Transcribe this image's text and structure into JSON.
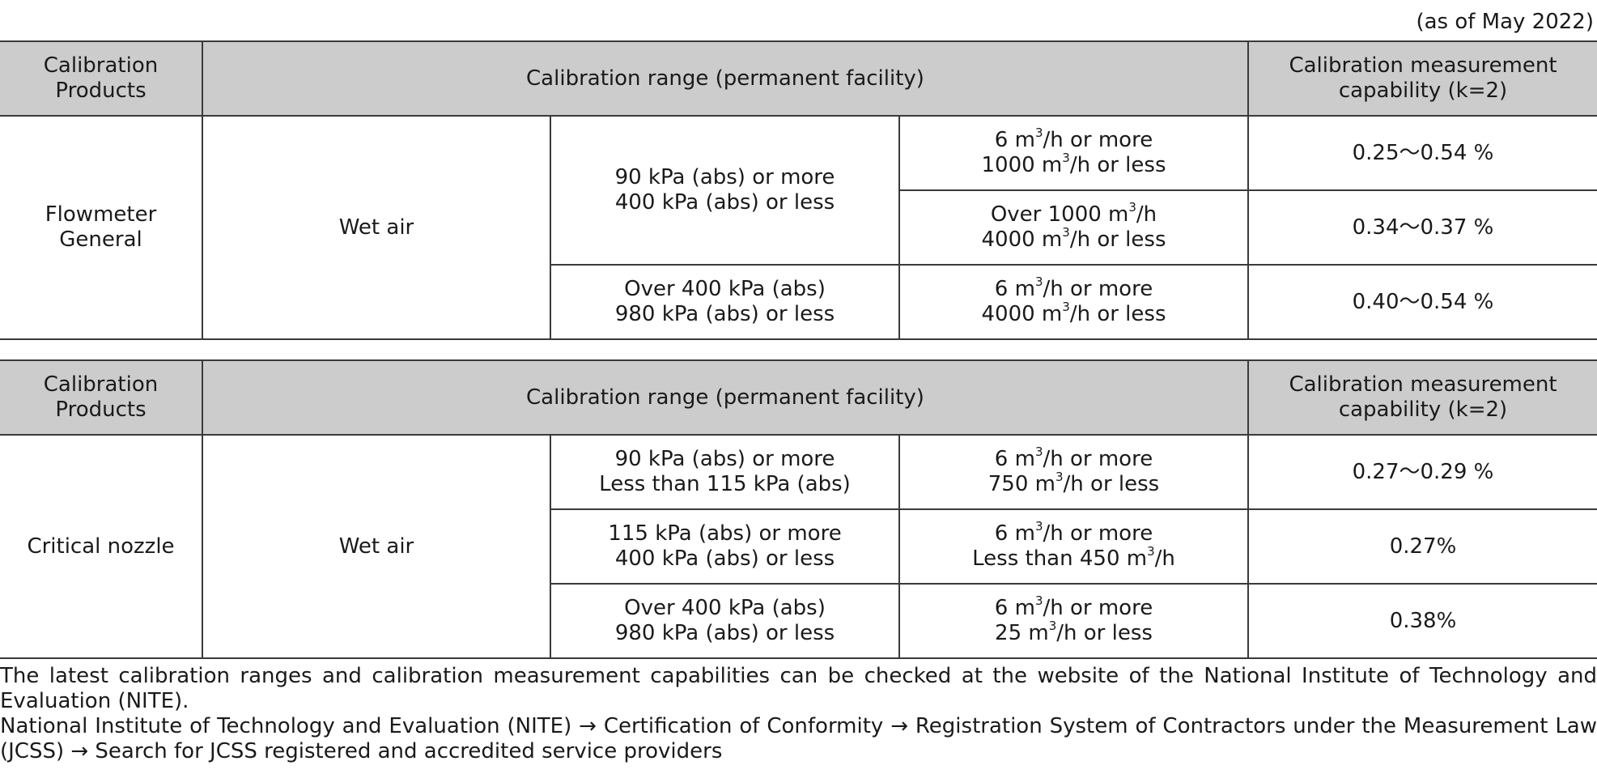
{
  "as_of": "(as of May 2022)",
  "header": {
    "products": "Calibration Products",
    "range": "Calibration range (permanent facility)",
    "capability": "Calibration measurement capability (k=2)"
  },
  "tables": [
    {
      "product": "Flowmeter General",
      "medium": "Wet air",
      "rows": [
        {
          "pressure": [
            "90 kPa (abs) or more",
            "400 kPa (abs) or less"
          ],
          "flow": [
            [
              "6 m",
              "3",
              "/h or more"
            ],
            [
              "1000 m",
              "3",
              "/h or less"
            ]
          ],
          "capability": "0.25〜0.54 %"
        },
        {
          "flow": [
            [
              "Over 1000 m",
              "3",
              "/h"
            ],
            [
              "4000 m",
              "3",
              "/h or less"
            ]
          ],
          "capability": "0.34〜0.37 %"
        },
        {
          "pressure": [
            "Over 400 kPa (abs)",
            "980 kPa (abs) or less"
          ],
          "flow": [
            [
              "6 m",
              "3",
              "/h or more"
            ],
            [
              "4000 m",
              "3",
              "/h or less"
            ]
          ],
          "capability": "0.40〜0.54 %"
        }
      ]
    },
    {
      "product": "Critical nozzle",
      "medium": "Wet air",
      "rows": [
        {
          "pressure": [
            "90 kPa (abs) or more",
            "Less than 115 kPa (abs)"
          ],
          "flow": [
            [
              "6 m",
              "3",
              "/h or more"
            ],
            [
              "750 m",
              "3",
              "/h or less"
            ]
          ],
          "capability": "0.27〜0.29 %"
        },
        {
          "pressure": [
            "115 kPa (abs) or more",
            "400 kPa (abs) or less"
          ],
          "flow": [
            [
              "6 m",
              "3",
              "/h or more"
            ],
            [
              "Less than  450 m",
              "3",
              "/h"
            ]
          ],
          "capability": "0.27%"
        },
        {
          "pressure": [
            "Over 400 kPa (abs)",
            "980 kPa (abs) or less"
          ],
          "flow": [
            [
              "6 m",
              "3",
              "/h or more"
            ],
            [
              "25 m",
              "3",
              "/h or less"
            ]
          ],
          "capability": "0.38%"
        }
      ]
    }
  ],
  "footnote": {
    "line1": "The latest calibration ranges and calibration measurement capabilities can be checked at the website of the National Institute of Technology and Evaluation (NITE).",
    "line2": "National Institute of Technology and Evaluation (NITE) → Certification of Conformity → Registration System of Contractors under the Measurement Law (JCSS) → Search for JCSS registered and accredited service providers"
  }
}
